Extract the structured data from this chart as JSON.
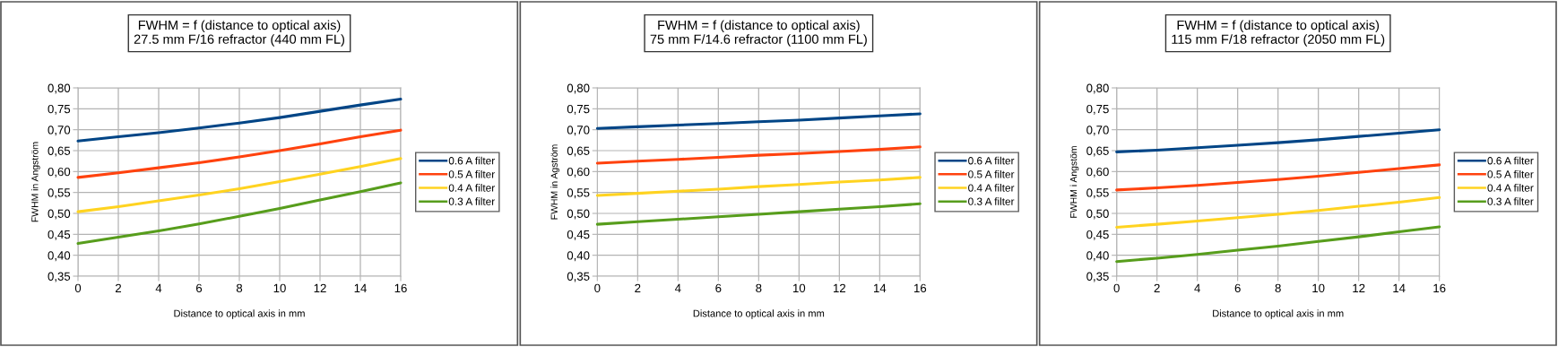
{
  "chart_data": [
    {
      "type": "line",
      "title": "FWHM = f (distance to optical axis)",
      "subtitle": "27.5 mm F/16 refractor (440 mm FL)",
      "xlabel": "Distance to optical axis in mm",
      "ylabel": "FWHM in Angström",
      "x": [
        0,
        2,
        4,
        6,
        8,
        10,
        12,
        14,
        16
      ],
      "series": [
        {
          "name": "0.6 A filter",
          "color": "#004586",
          "values": [
            0.673,
            0.683,
            0.693,
            0.704,
            0.716,
            0.729,
            0.744,
            0.759,
            0.773
          ]
        },
        {
          "name": "0.5 A filter",
          "color": "#ff420e",
          "values": [
            0.586,
            0.597,
            0.609,
            0.621,
            0.635,
            0.65,
            0.666,
            0.683,
            0.699
          ]
        },
        {
          "name": "0.4 A filter",
          "color": "#ffd320",
          "values": [
            0.504,
            0.516,
            0.53,
            0.544,
            0.559,
            0.576,
            0.594,
            0.612,
            0.631
          ]
        },
        {
          "name": "0.3 A filter",
          "color": "#579d1c",
          "values": [
            0.428,
            0.443,
            0.458,
            0.475,
            0.493,
            0.512,
            0.532,
            0.552,
            0.573
          ]
        }
      ],
      "xlim": [
        0,
        16
      ],
      "xticks": [
        0,
        2,
        4,
        6,
        8,
        10,
        12,
        14,
        16
      ],
      "ylim": [
        0.35,
        0.8
      ],
      "yticks": [
        {
          "value": 0.35,
          "label": "0,35"
        },
        {
          "value": 0.4,
          "label": "0,40"
        },
        {
          "value": 0.45,
          "label": "0,45"
        },
        {
          "value": 0.5,
          "label": "0,50"
        },
        {
          "value": 0.55,
          "label": "0,55"
        },
        {
          "value": 0.6,
          "label": "0,60"
        },
        {
          "value": 0.65,
          "label": "0,65"
        },
        {
          "value": 0.7,
          "label": "0,70"
        },
        {
          "value": 0.75,
          "label": "0,75"
        },
        {
          "value": 0.8,
          "label": "0,80"
        }
      ],
      "grid": true,
      "legend": "right",
      "marker": "none",
      "line_style": "solid"
    },
    {
      "type": "line",
      "title": "FWHM = f (distance to optical axis)",
      "subtitle": "75 mm F/14.6 refractor (1100 mm FL)",
      "xlabel": "Distance to optical axis in mm",
      "ylabel": "FWHM in Agström",
      "x": [
        0,
        2,
        4,
        6,
        8,
        10,
        12,
        14,
        16
      ],
      "series": [
        {
          "name": "0.6 A filter",
          "color": "#004586",
          "values": [
            0.703,
            0.707,
            0.711,
            0.715,
            0.719,
            0.723,
            0.728,
            0.733,
            0.738
          ]
        },
        {
          "name": "0.5 A filter",
          "color": "#ff420e",
          "values": [
            0.62,
            0.625,
            0.629,
            0.634,
            0.639,
            0.643,
            0.648,
            0.653,
            0.659
          ]
        },
        {
          "name": "0.4 A filter",
          "color": "#ffd320",
          "values": [
            0.543,
            0.548,
            0.553,
            0.558,
            0.564,
            0.569,
            0.575,
            0.58,
            0.586
          ]
        },
        {
          "name": "0.3 A filter",
          "color": "#579d1c",
          "values": [
            0.474,
            0.48,
            0.486,
            0.492,
            0.498,
            0.504,
            0.51,
            0.516,
            0.523
          ]
        }
      ],
      "xlim": [
        0,
        16
      ],
      "xticks": [
        0,
        2,
        4,
        6,
        8,
        10,
        12,
        14,
        16
      ],
      "ylim": [
        0.35,
        0.8
      ],
      "yticks": [
        {
          "value": 0.35,
          "label": "0,35"
        },
        {
          "value": 0.4,
          "label": "0,40"
        },
        {
          "value": 0.45,
          "label": "0,45"
        },
        {
          "value": 0.5,
          "label": "0,50"
        },
        {
          "value": 0.55,
          "label": "0,55"
        },
        {
          "value": 0.6,
          "label": "0,60"
        },
        {
          "value": 0.65,
          "label": "0,65"
        },
        {
          "value": 0.7,
          "label": "0,70"
        },
        {
          "value": 0.75,
          "label": "0,75"
        },
        {
          "value": 0.8,
          "label": "0,80"
        }
      ],
      "grid": true,
      "legend": "right",
      "marker": "none",
      "line_style": "solid"
    },
    {
      "type": "line",
      "title": "FWHM = f (distance to optical axis)",
      "subtitle": "115 mm F/18 refractor (2050 mm FL)",
      "xlabel": "Distance to optical axis in mm",
      "ylabel": "FWHM i Angstöm",
      "x": [
        0,
        2,
        4,
        6,
        8,
        10,
        12,
        14,
        16
      ],
      "series": [
        {
          "name": "0.6 A filter",
          "color": "#004586",
          "values": [
            0.647,
            0.651,
            0.657,
            0.663,
            0.669,
            0.676,
            0.684,
            0.692,
            0.7
          ]
        },
        {
          "name": "0.5 A filter",
          "color": "#ff420e",
          "values": [
            0.556,
            0.561,
            0.567,
            0.574,
            0.581,
            0.589,
            0.598,
            0.607,
            0.616
          ]
        },
        {
          "name": "0.4 A filter",
          "color": "#ffd320",
          "values": [
            0.467,
            0.474,
            0.482,
            0.49,
            0.498,
            0.507,
            0.517,
            0.527,
            0.538
          ]
        },
        {
          "name": "0.3 A filter",
          "color": "#579d1c",
          "values": [
            0.385,
            0.393,
            0.402,
            0.412,
            0.422,
            0.433,
            0.444,
            0.456,
            0.468
          ]
        }
      ],
      "xlim": [
        0,
        16
      ],
      "xticks": [
        0,
        2,
        4,
        6,
        8,
        10,
        12,
        14,
        16
      ],
      "ylim": [
        0.35,
        0.8
      ],
      "yticks": [
        {
          "value": 0.35,
          "label": "0,35"
        },
        {
          "value": 0.4,
          "label": "0,40"
        },
        {
          "value": 0.45,
          "label": "0,45"
        },
        {
          "value": 0.5,
          "label": "0,50"
        },
        {
          "value": 0.55,
          "label": "0,55"
        },
        {
          "value": 0.6,
          "label": "0,60"
        },
        {
          "value": 0.65,
          "label": "0,65"
        },
        {
          "value": 0.7,
          "label": "0,70"
        },
        {
          "value": 0.75,
          "label": "0,75"
        },
        {
          "value": 0.8,
          "label": "0,80"
        }
      ],
      "grid": true,
      "legend": "right",
      "marker": "none",
      "line_style": "solid"
    }
  ]
}
